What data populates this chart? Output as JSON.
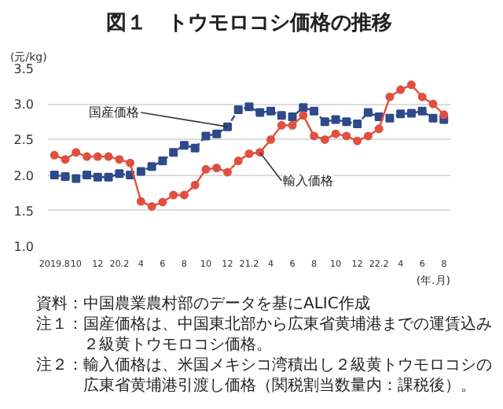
{
  "chart_data": {
    "type": "line",
    "title": "図１　トウモロコシ価格の推移",
    "xlabel": "(年.月)",
    "ylabel": "(元/kg)",
    "categories": [
      "2019.8",
      null,
      "10",
      null,
      "12",
      null,
      "20.2",
      null,
      "4",
      null,
      "6",
      null,
      "8",
      null,
      "10",
      null,
      "12",
      null,
      "21.2",
      null,
      "4",
      null,
      "6",
      null,
      "8",
      null,
      "10",
      null,
      "12",
      null,
      "22.2",
      null,
      "4",
      null,
      "6",
      null,
      "8"
    ],
    "series": [
      {
        "name": "国産価格",
        "color": "#2f4a8a",
        "marker": "square",
        "line_style": "dashed",
        "values": [
          2.0,
          1.98,
          1.95,
          2.0,
          1.97,
          1.97,
          2.02,
          2.0,
          2.05,
          2.12,
          2.2,
          2.32,
          2.42,
          2.38,
          2.55,
          2.58,
          2.68,
          2.92,
          2.96,
          2.88,
          2.9,
          2.84,
          2.82,
          2.95,
          2.9,
          2.75,
          2.78,
          2.75,
          2.72,
          2.88,
          2.82,
          2.8,
          2.86,
          2.87,
          2.9,
          2.8,
          2.78
        ]
      },
      {
        "name": "輸入価格",
        "color": "#e05040",
        "marker": "circle",
        "line_style": "solid",
        "values": [
          2.28,
          2.22,
          2.32,
          2.26,
          2.26,
          2.26,
          2.22,
          2.17,
          1.63,
          1.56,
          1.62,
          1.72,
          1.72,
          1.86,
          2.08,
          2.1,
          2.04,
          2.2,
          2.3,
          2.32,
          2.5,
          2.7,
          2.7,
          2.84,
          2.55,
          2.5,
          2.58,
          2.55,
          2.48,
          2.55,
          2.65,
          3.1,
          3.2,
          3.27,
          3.1,
          3.0,
          2.85
        ]
      }
    ],
    "ylim": [
      1.0,
      3.5
    ],
    "yticks": [
      {
        "value": 1.0,
        "label": "1.0"
      },
      {
        "value": 1.5,
        "label": "1.5"
      },
      {
        "value": 2.0,
        "label": "2.0"
      },
      {
        "value": 2.5,
        "label": "2.5"
      },
      {
        "value": 3.0,
        "label": "3.0"
      },
      {
        "value": 3.5,
        "label": "3.5"
      }
    ],
    "grid": "y",
    "legend": false,
    "annotations": [
      "資料：中国農業農村部のデータを基にALIC作成",
      "注１：国産価格は、中国東北部から広東省黄埔港までの運賃込み２級黄トウモロコシ価格。",
      "注２：輸入価格は、米国メキシコ湾積出し２級黄トウモロコシの広東省黄埔港引渡し価格（関税割当数量内：課税後）。"
    ]
  }
}
